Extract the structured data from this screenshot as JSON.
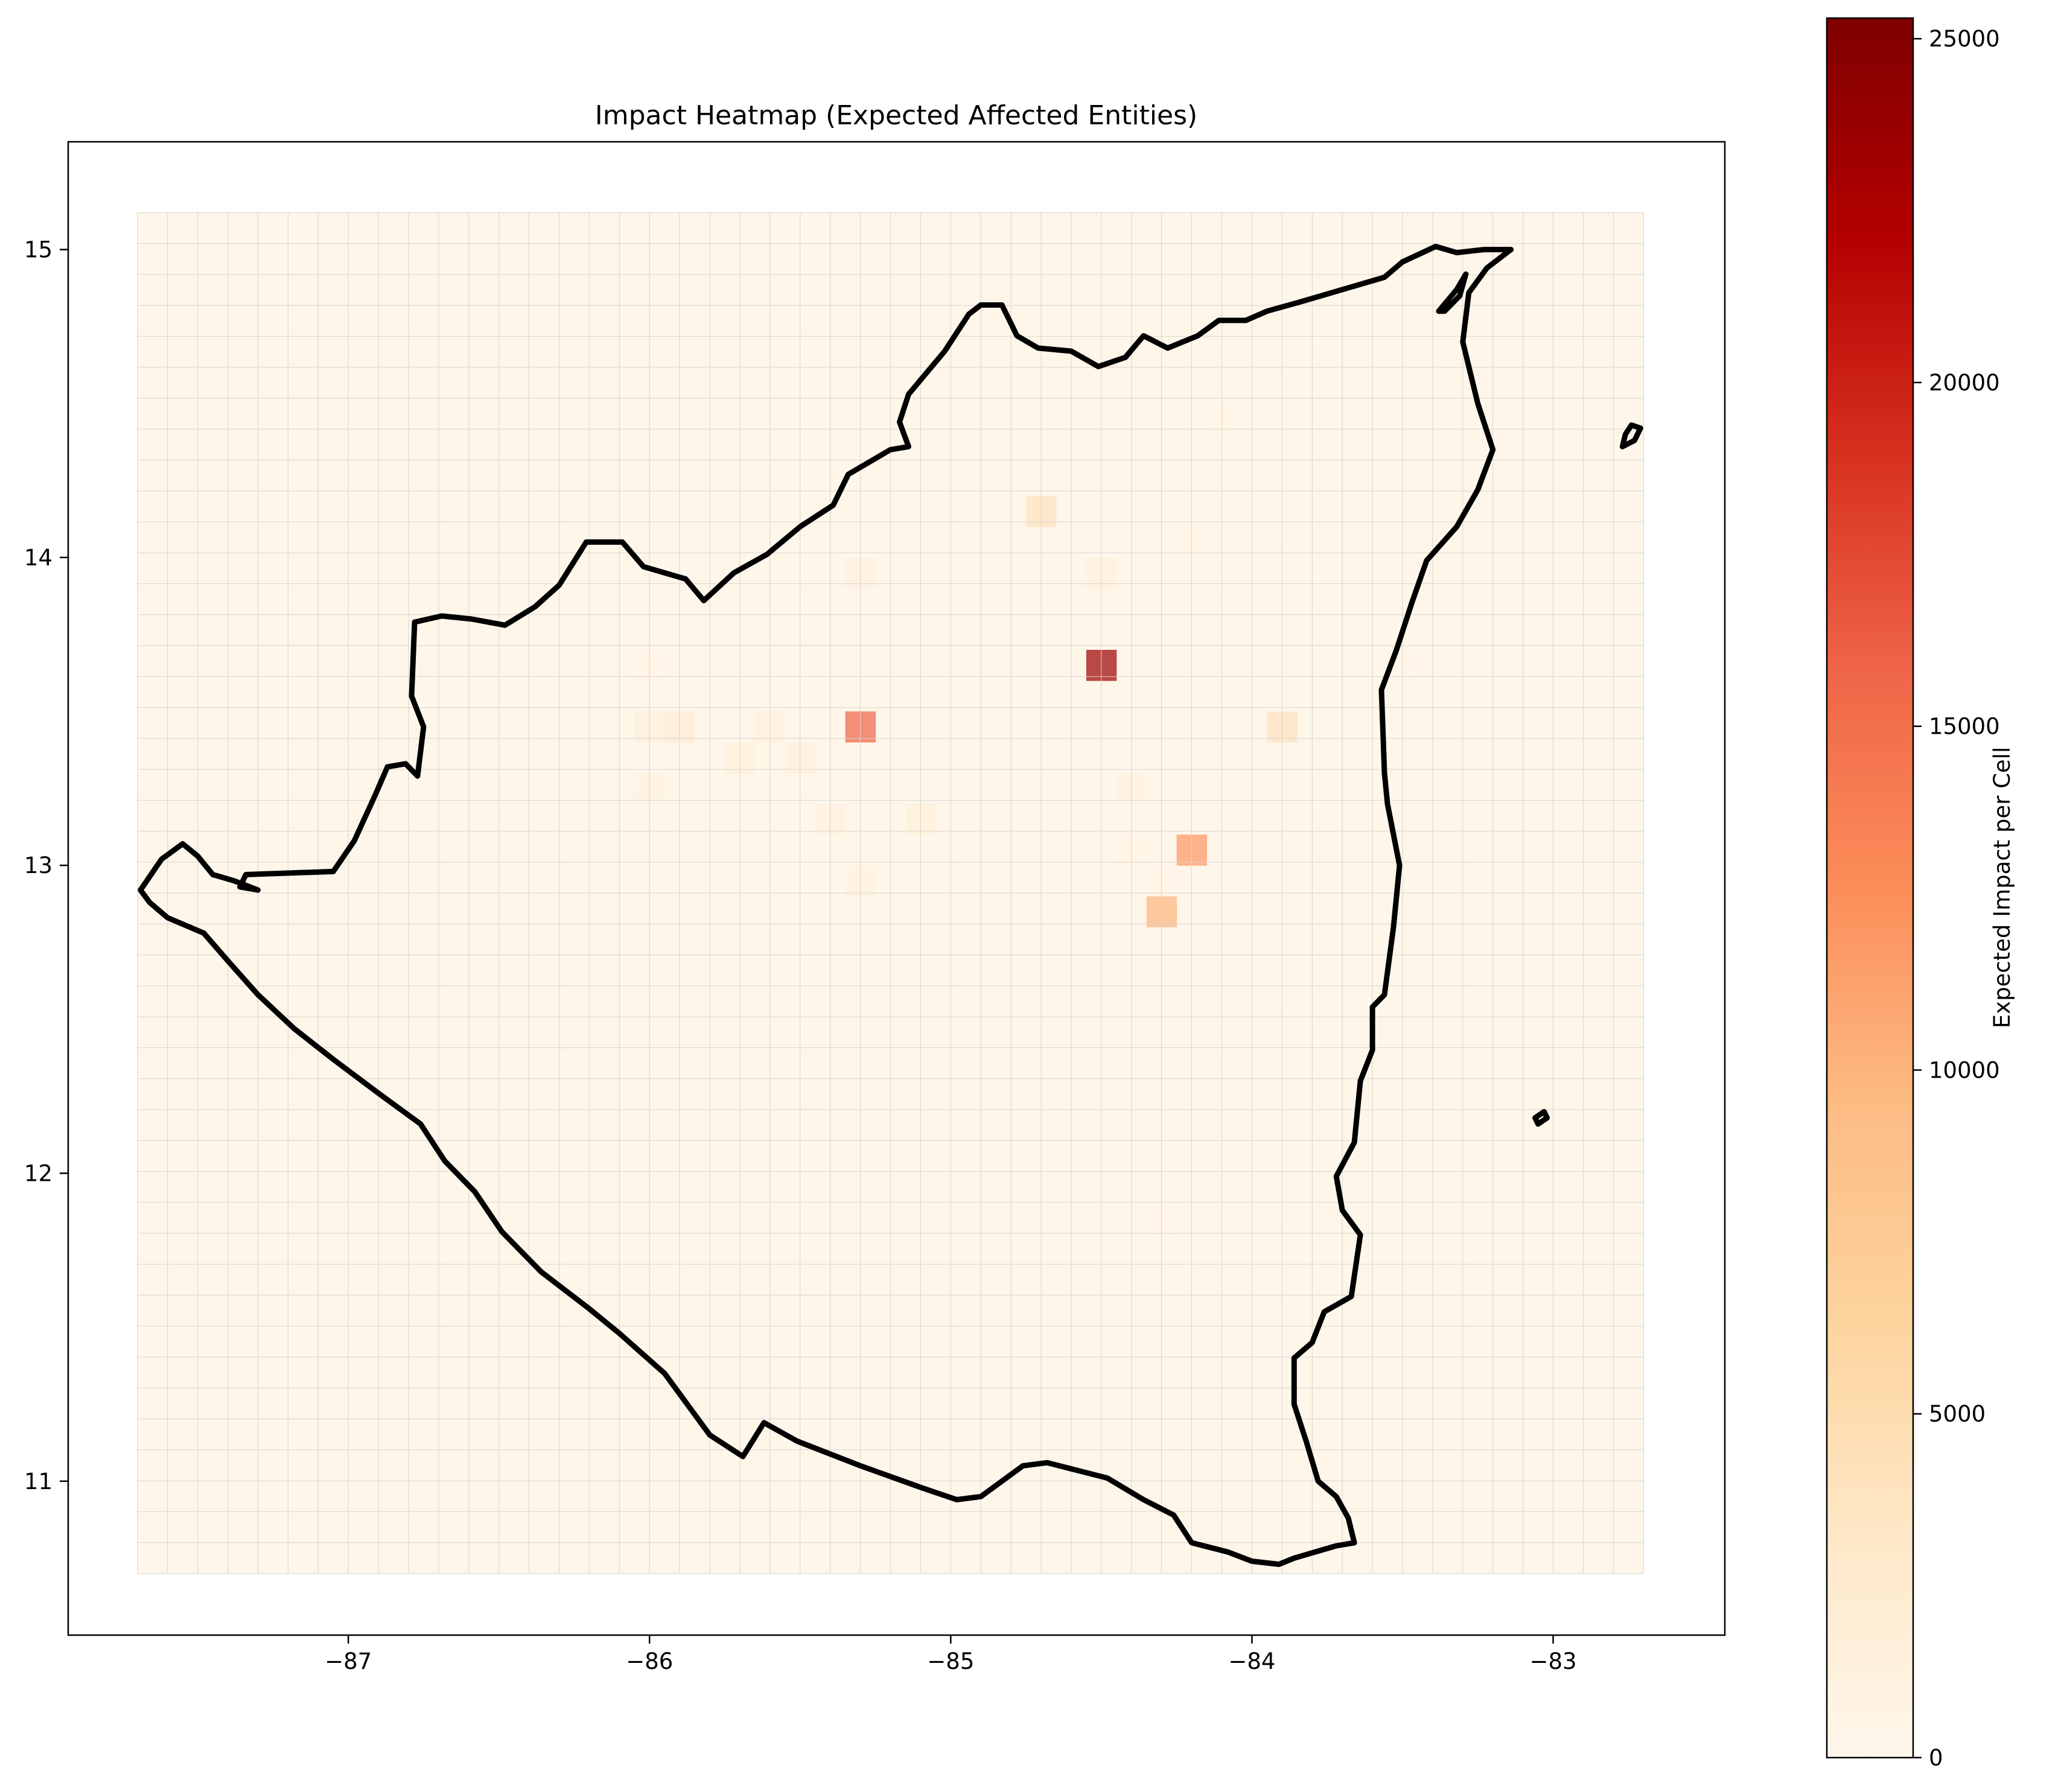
{
  "chart_data": {
    "type": "heatmap",
    "title": "Impact Heatmap (Expected Affected Entities)",
    "xlabel": "",
    "ylabel": "",
    "xlim": [
      -87.93,
      -82.43
    ],
    "ylim": [
      10.5,
      15.35
    ],
    "x_ticks": [
      -87,
      -86,
      -85,
      -84,
      -83
    ],
    "x_tick_labels": [
      "−87",
      "−86",
      "−85",
      "−84",
      "−83"
    ],
    "y_ticks": [
      11,
      12,
      13,
      14,
      15
    ],
    "y_tick_labels": [
      "11",
      "12",
      "13",
      "14",
      "15"
    ],
    "grid": {
      "x_min": -87.7,
      "x_max": -82.7,
      "y_min": 10.7,
      "y_max": 15.12,
      "cell_size": 0.1,
      "cols": 50,
      "rows": 44,
      "background_value": 150
    },
    "cells": [
      {
        "lon": -84.5,
        "lat": 13.65,
        "value": 23500
      },
      {
        "lon": -85.3,
        "lat": 13.45,
        "value": 16000
      },
      {
        "lon": -84.2,
        "lat": 13.05,
        "value": 12000
      },
      {
        "lon": -84.3,
        "lat": 12.85,
        "value": 10000
      },
      {
        "lon": -84.7,
        "lat": 14.15,
        "value": 4000
      },
      {
        "lon": -83.9,
        "lat": 13.45,
        "value": 4000
      },
      {
        "lon": -85.9,
        "lat": 13.45,
        "value": 2200
      },
      {
        "lon": -86.0,
        "lat": 13.45,
        "value": 1600
      },
      {
        "lon": -85.7,
        "lat": 13.35,
        "value": 1700
      },
      {
        "lon": -85.6,
        "lat": 13.45,
        "value": 1300
      },
      {
        "lon": -85.5,
        "lat": 13.35,
        "value": 1500
      },
      {
        "lon": -85.4,
        "lat": 13.15,
        "value": 1200
      },
      {
        "lon": -85.1,
        "lat": 13.15,
        "value": 1700
      },
      {
        "lon": -86.0,
        "lat": 13.25,
        "value": 1100
      },
      {
        "lon": -85.3,
        "lat": 13.95,
        "value": 1200
      },
      {
        "lon": -84.5,
        "lat": 13.95,
        "value": 1300
      },
      {
        "lon": -84.2,
        "lat": 14.05,
        "value": 900
      },
      {
        "lon": -84.1,
        "lat": 14.45,
        "value": 800
      },
      {
        "lon": -84.4,
        "lat": 13.25,
        "value": 1100
      },
      {
        "lon": -85.3,
        "lat": 12.95,
        "value": 1100
      },
      {
        "lon": -84.3,
        "lat": 12.95,
        "value": 900
      },
      {
        "lon": -84.4,
        "lat": 13.05,
        "value": 800
      },
      {
        "lon": -86.0,
        "lat": 13.65,
        "value": 700
      },
      {
        "lon": -83.5,
        "lat": 13.65,
        "value": 700
      },
      {
        "lon": -84.3,
        "lat": 11.85,
        "value": 600
      }
    ],
    "outline_lonlat": [
      [
        -87.69,
        12.92
      ],
      [
        -87.62,
        13.02
      ],
      [
        -87.55,
        13.07
      ],
      [
        -87.5,
        13.03
      ],
      [
        -87.45,
        12.97
      ],
      [
        -87.38,
        12.95
      ],
      [
        -87.3,
        12.92
      ],
      [
        -87.36,
        12.93
      ],
      [
        -87.34,
        12.97
      ],
      [
        -87.05,
        12.98
      ],
      [
        -86.98,
        13.08
      ],
      [
        -86.91,
        13.23
      ],
      [
        -86.87,
        13.32
      ],
      [
        -86.81,
        13.33
      ],
      [
        -86.77,
        13.29
      ],
      [
        -86.75,
        13.45
      ],
      [
        -86.79,
        13.55
      ],
      [
        -86.78,
        13.79
      ],
      [
        -86.69,
        13.81
      ],
      [
        -86.59,
        13.8
      ],
      [
        -86.48,
        13.78
      ],
      [
        -86.38,
        13.84
      ],
      [
        -86.3,
        13.91
      ],
      [
        -86.21,
        14.05
      ],
      [
        -86.09,
        14.05
      ],
      [
        -86.02,
        13.97
      ],
      [
        -85.88,
        13.93
      ],
      [
        -85.82,
        13.86
      ],
      [
        -85.72,
        13.95
      ],
      [
        -85.61,
        14.01
      ],
      [
        -85.5,
        14.1
      ],
      [
        -85.39,
        14.17
      ],
      [
        -85.34,
        14.27
      ],
      [
        -85.2,
        14.35
      ],
      [
        -85.14,
        14.36
      ],
      [
        -85.17,
        14.44
      ],
      [
        -85.14,
        14.53
      ],
      [
        -85.08,
        14.6
      ],
      [
        -85.02,
        14.67
      ],
      [
        -84.94,
        14.79
      ],
      [
        -84.9,
        14.82
      ],
      [
        -84.83,
        14.82
      ],
      [
        -84.78,
        14.72
      ],
      [
        -84.71,
        14.68
      ],
      [
        -84.6,
        14.67
      ],
      [
        -84.51,
        14.62
      ],
      [
        -84.42,
        14.65
      ],
      [
        -84.36,
        14.72
      ],
      [
        -84.28,
        14.68
      ],
      [
        -84.18,
        14.72
      ],
      [
        -84.11,
        14.77
      ],
      [
        -84.02,
        14.77
      ],
      [
        -83.95,
        14.8
      ],
      [
        -83.84,
        14.83
      ],
      [
        -83.7,
        14.87
      ],
      [
        -83.56,
        14.91
      ],
      [
        -83.5,
        14.96
      ],
      [
        -83.39,
        15.01
      ],
      [
        -83.32,
        14.99
      ],
      [
        -83.23,
        15.0
      ],
      [
        -83.14,
        15.0
      ],
      [
        -83.22,
        14.94
      ],
      [
        -83.28,
        14.86
      ],
      [
        -83.3,
        14.7
      ],
      [
        -83.25,
        14.5
      ],
      [
        -83.2,
        14.35
      ],
      [
        -83.25,
        14.22
      ],
      [
        -83.32,
        14.1
      ],
      [
        -83.42,
        13.99
      ],
      [
        -83.47,
        13.85
      ],
      [
        -83.52,
        13.7
      ],
      [
        -83.57,
        13.57
      ],
      [
        -83.56,
        13.3
      ],
      [
        -83.55,
        13.2
      ],
      [
        -83.51,
        13.0
      ],
      [
        -83.53,
        12.8
      ],
      [
        -83.56,
        12.58
      ],
      [
        -83.6,
        12.54
      ],
      [
        -83.6,
        12.4
      ],
      [
        -83.64,
        12.3
      ],
      [
        -83.66,
        12.1
      ],
      [
        -83.72,
        11.99
      ],
      [
        -83.7,
        11.88
      ],
      [
        -83.64,
        11.8
      ],
      [
        -83.67,
        11.6
      ],
      [
        -83.76,
        11.55
      ],
      [
        -83.8,
        11.45
      ],
      [
        -83.86,
        11.4
      ],
      [
        -83.86,
        11.25
      ],
      [
        -83.82,
        11.13
      ],
      [
        -83.78,
        11.0
      ],
      [
        -83.72,
        10.95
      ],
      [
        -83.68,
        10.88
      ],
      [
        -83.66,
        10.8
      ],
      [
        -83.72,
        10.79
      ],
      [
        -83.86,
        10.75
      ],
      [
        -83.91,
        10.73
      ],
      [
        -84.0,
        10.74
      ],
      [
        -84.08,
        10.77
      ],
      [
        -84.2,
        10.8
      ],
      [
        -84.26,
        10.89
      ],
      [
        -84.36,
        10.94
      ],
      [
        -84.48,
        11.01
      ],
      [
        -84.6,
        11.04
      ],
      [
        -84.68,
        11.06
      ],
      [
        -84.76,
        11.05
      ],
      [
        -84.9,
        10.95
      ],
      [
        -84.98,
        10.94
      ],
      [
        -85.1,
        10.98
      ],
      [
        -85.3,
        11.05
      ],
      [
        -85.51,
        11.13
      ],
      [
        -85.62,
        11.19
      ],
      [
        -85.69,
        11.08
      ],
      [
        -85.8,
        11.15
      ],
      [
        -85.95,
        11.35
      ],
      [
        -86.1,
        11.48
      ],
      [
        -86.2,
        11.56
      ],
      [
        -86.36,
        11.68
      ],
      [
        -86.49,
        11.81
      ],
      [
        -86.58,
        11.94
      ],
      [
        -86.68,
        12.04
      ],
      [
        -86.76,
        12.16
      ],
      [
        -86.9,
        12.26
      ],
      [
        -87.05,
        12.37
      ],
      [
        -87.18,
        12.47
      ],
      [
        -87.3,
        12.58
      ],
      [
        -87.4,
        12.69
      ],
      [
        -87.48,
        12.78
      ],
      [
        -87.6,
        12.83
      ],
      [
        -87.66,
        12.88
      ],
      [
        -87.69,
        12.92
      ]
    ],
    "islands_lonlat": [
      [
        [
          -82.77,
          14.36
        ],
        [
          -82.73,
          14.38
        ],
        [
          -82.71,
          14.42
        ],
        [
          -82.74,
          14.43
        ],
        [
          -82.76,
          14.4
        ],
        [
          -82.77,
          14.36
        ]
      ],
      [
        [
          -83.05,
          12.16
        ],
        [
          -83.02,
          12.18
        ],
        [
          -83.03,
          12.2
        ],
        [
          -83.06,
          12.18
        ],
        [
          -83.05,
          12.16
        ]
      ],
      [
        [
          -83.38,
          14.8
        ],
        [
          -83.32,
          14.87
        ],
        [
          -83.29,
          14.92
        ],
        [
          -83.31,
          14.85
        ],
        [
          -83.36,
          14.8
        ],
        [
          -83.38,
          14.8
        ]
      ]
    ],
    "colormap": "OrRd",
    "colorbar": {
      "label": "Expected Impact per Cell",
      "min": 0,
      "max": 25300,
      "ticks": [
        0,
        5000,
        10000,
        15000,
        20000,
        25000
      ],
      "tick_labels": [
        "0",
        "5000",
        "10000",
        "15000",
        "20000",
        "25000"
      ]
    }
  }
}
